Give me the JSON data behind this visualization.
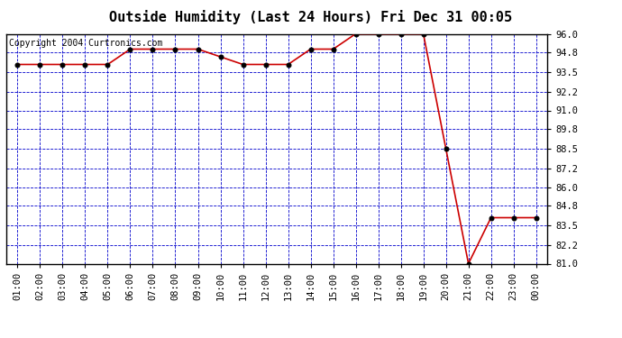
{
  "title": "Outside Humidity (Last 24 Hours) Fri Dec 31 00:05",
  "copyright": "Copyright 2004 Curtronics.com",
  "x_labels": [
    "01:00",
    "02:00",
    "03:00",
    "04:00",
    "05:00",
    "06:00",
    "07:00",
    "08:00",
    "09:00",
    "10:00",
    "11:00",
    "12:00",
    "13:00",
    "14:00",
    "15:00",
    "16:00",
    "17:00",
    "18:00",
    "19:00",
    "20:00",
    "21:00",
    "22:00",
    "23:00",
    "00:00"
  ],
  "x_values": [
    1,
    2,
    3,
    4,
    5,
    6,
    7,
    8,
    9,
    10,
    11,
    12,
    13,
    14,
    15,
    16,
    17,
    18,
    19,
    20,
    21,
    22,
    23,
    24
  ],
  "y_values": [
    94.0,
    94.0,
    94.0,
    94.0,
    94.0,
    95.0,
    95.0,
    95.0,
    95.0,
    94.5,
    94.0,
    94.0,
    94.0,
    95.0,
    95.0,
    96.0,
    96.0,
    96.0,
    96.0,
    88.5,
    81.0,
    84.0,
    84.0,
    84.0
  ],
  "ylim": [
    81.0,
    96.0
  ],
  "yticks": [
    81.0,
    82.2,
    83.5,
    84.8,
    86.0,
    87.2,
    88.5,
    89.8,
    91.0,
    92.2,
    93.5,
    94.8,
    96.0
  ],
  "line_color": "#cc0000",
  "marker_color": "#000000",
  "fig_bg_color": "#ffffff",
  "plot_bg_color": "#ffffff",
  "grid_color": "#0000cc",
  "title_color": "#000000",
  "border_color": "#000000",
  "copyright_color": "#000000",
  "title_fontsize": 11,
  "copyright_fontsize": 7,
  "tick_fontsize": 7.5,
  "marker_size": 3.5
}
